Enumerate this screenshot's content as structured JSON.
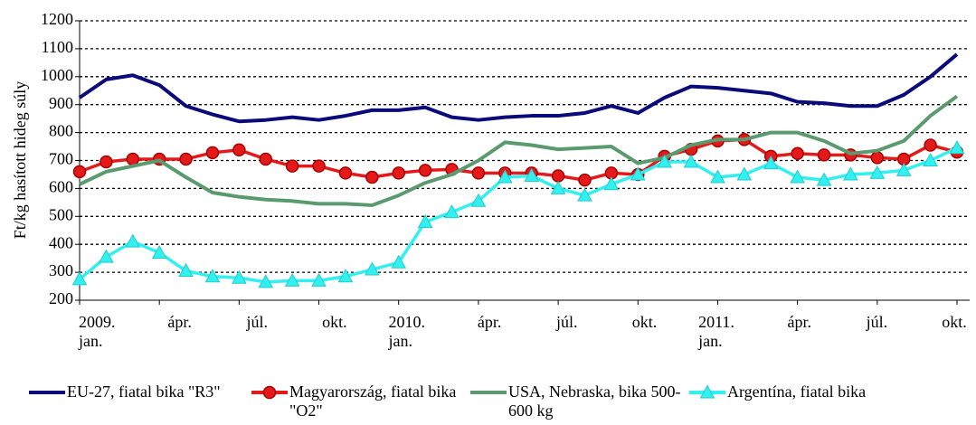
{
  "chart_data": {
    "type": "line",
    "ylabel": "Ft/kg hasított hideg súly",
    "categories": [
      "2009. jan.",
      null,
      null,
      "ápr.",
      null,
      null,
      "júl.",
      null,
      null,
      "okt.",
      null,
      null,
      "2010. jan.",
      null,
      null,
      "ápr.",
      null,
      null,
      "júl.",
      null,
      null,
      "okt.",
      null,
      null,
      "2011. jan.",
      null,
      null,
      "ápr.",
      null,
      null,
      "júl.",
      null,
      null,
      "okt."
    ],
    "series": [
      {
        "name": "EU-27, fiatal bika \"R3\"",
        "color": "#0a0a7a",
        "marker": "none",
        "values": [
          925,
          990,
          1005,
          970,
          895,
          865,
          840,
          845,
          855,
          845,
          860,
          880,
          880,
          890,
          855,
          845,
          855,
          860,
          860,
          870,
          895,
          870,
          925,
          965,
          960,
          950,
          940,
          910,
          905,
          895,
          895,
          935,
          1000,
          1080
        ]
      },
      {
        "name": "Magyarország, fiatal bika \"O2\"",
        "color": "#e41a1a",
        "marker": "circle",
        "values": [
          660,
          695,
          705,
          705,
          705,
          728,
          738,
          705,
          680,
          680,
          655,
          640,
          655,
          665,
          668,
          655,
          655,
          655,
          645,
          630,
          655,
          650,
          715,
          740,
          770,
          775,
          715,
          725,
          720,
          720,
          710,
          705,
          755,
          730
        ]
      },
      {
        "name": "USA, Nebraska, bika 500-600 kg",
        "color": "#5a9a6e",
        "marker": "none",
        "values": [
          615,
          660,
          680,
          700,
          640,
          585,
          570,
          560,
          555,
          545,
          545,
          540,
          575,
          620,
          650,
          700,
          765,
          755,
          740,
          745,
          750,
          690,
          710,
          755,
          775,
          775,
          800,
          800,
          770,
          725,
          735,
          770,
          860,
          930
        ]
      },
      {
        "name": "Argentína, fiatal bika",
        "color": "#33f0f0",
        "marker": "triangle",
        "values": [
          275,
          355,
          410,
          370,
          305,
          285,
          280,
          265,
          270,
          270,
          285,
          310,
          335,
          480,
          515,
          555,
          640,
          645,
          600,
          575,
          615,
          650,
          695,
          695,
          640,
          650,
          690,
          640,
          630,
          650,
          655,
          665,
          700,
          745
        ]
      }
    ],
    "ylim": [
      200,
      1200
    ],
    "yticks": [
      200,
      300,
      400,
      500,
      600,
      700,
      800,
      900,
      1000,
      1100,
      1200
    ],
    "grid": true
  }
}
